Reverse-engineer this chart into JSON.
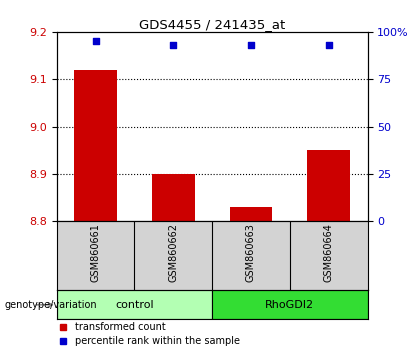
{
  "title": "GDS4455 / 241435_at",
  "samples": [
    "GSM860661",
    "GSM860662",
    "GSM860663",
    "GSM860664"
  ],
  "red_values": [
    9.12,
    8.9,
    8.83,
    8.95
  ],
  "blue_pct": [
    95,
    93,
    93,
    93
  ],
  "ylim_left": [
    8.8,
    9.2
  ],
  "ylim_right": [
    0,
    100
  ],
  "yticks_left": [
    8.8,
    8.9,
    9.0,
    9.1,
    9.2
  ],
  "yticks_right": [
    0,
    25,
    50,
    75,
    100
  ],
  "ytick_right_labels": [
    "0",
    "25",
    "50",
    "75",
    "100%"
  ],
  "dotted_lines": [
    8.9,
    9.0,
    9.1
  ],
  "groups": [
    {
      "label": "control",
      "samples": [
        0,
        1
      ],
      "color": "#b3ffb3"
    },
    {
      "label": "RhoGDI2",
      "samples": [
        2,
        3
      ],
      "color": "#33dd33"
    }
  ],
  "bar_color": "#cc0000",
  "blue_color": "#0000cc",
  "baseline": 8.8,
  "bar_width": 0.55,
  "group_label_prefix": "genotype/variation",
  "legend_items": [
    {
      "color": "#cc0000",
      "label": "transformed count"
    },
    {
      "color": "#0000cc",
      "label": "percentile rank within the sample"
    }
  ],
  "background_color": "#ffffff",
  "plot_bg_color": "#ffffff",
  "sample_area_color": "#d3d3d3"
}
